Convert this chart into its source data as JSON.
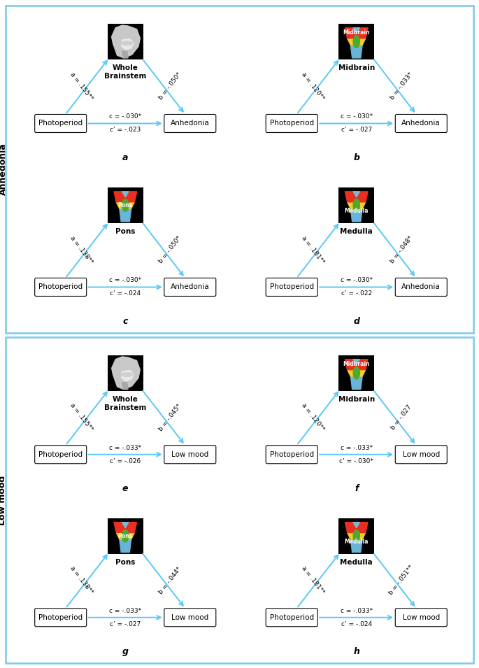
{
  "border_color": "#87ceeb",
  "arrow_color": "#5bc8f5",
  "panels": [
    {
      "id": "a",
      "row": 0,
      "col": 0,
      "mediator": "Whole\nBrainstem",
      "outcome": "Anhedonia",
      "a_label": "a = .155**",
      "b_label": "b = -.050*",
      "c_label": "c = -.030*",
      "cprime_label": "c’ = -.023",
      "image_type": "brainstem_gray"
    },
    {
      "id": "b",
      "row": 0,
      "col": 1,
      "mediator": "Midbrain",
      "outcome": "Anhedonia",
      "a_label": "a = .120**",
      "b_label": "b = -.033*",
      "c_label": "c = -.030*",
      "cprime_label": "c’ = -.027",
      "image_type": "midbrain_color"
    },
    {
      "id": "c",
      "row": 1,
      "col": 0,
      "mediator": "Pons",
      "outcome": "Anhedonia",
      "a_label": "a = .138**",
      "b_label": "b = -.050*",
      "c_label": "c = -.030*",
      "cprime_label": "c’ = -.024",
      "image_type": "pons_color"
    },
    {
      "id": "d",
      "row": 1,
      "col": 1,
      "mediator": "Medulla",
      "outcome": "Anhedonia",
      "a_label": "a = .181**",
      "b_label": "b = -.048*",
      "c_label": "c = -.030*",
      "cprime_label": "c’ = -.022",
      "image_type": "medulla_color"
    },
    {
      "id": "e",
      "row": 2,
      "col": 0,
      "mediator": "Whole\nBrainstem",
      "outcome": "Low mood",
      "a_label": "a = .155**",
      "b_label": "b = -.045*",
      "c_label": "c = -.033*",
      "cprime_label": "c’ = -.026",
      "image_type": "brainstem_gray"
    },
    {
      "id": "f",
      "row": 2,
      "col": 1,
      "mediator": "Midbrain",
      "outcome": "Low mood",
      "a_label": "a = .120**",
      "b_label": "b = -.027",
      "c_label": "c = -.033*",
      "cprime_label": "c’ = -.030*",
      "image_type": "midbrain_color"
    },
    {
      "id": "g",
      "row": 3,
      "col": 0,
      "mediator": "Pons",
      "outcome": "Low mood",
      "a_label": "a = .138**",
      "b_label": "b = -.044*",
      "c_label": "c = -.033*",
      "cprime_label": "c’ = -.027",
      "image_type": "pons_color"
    },
    {
      "id": "h",
      "row": 3,
      "col": 1,
      "mediator": "Medulla",
      "outcome": "Low mood",
      "a_label": "a = .181**",
      "b_label": "b = -.051**",
      "c_label": "c = -.033*",
      "cprime_label": "c’ = -.024",
      "image_type": "medulla_color"
    }
  ]
}
